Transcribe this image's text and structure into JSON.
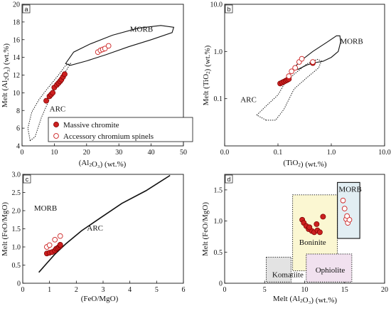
{
  "colors": {
    "filled": "#cc2020",
    "open": "#cc2020",
    "axis": "#111111"
  },
  "legend": {
    "items": [
      "Massive chromite",
      "Accessory chromium spinels"
    ]
  },
  "chart_data": [
    {
      "panel": "a",
      "type": "scatter",
      "xlabel": "(Al₂O₃) (wt.%)",
      "ylabel": "Melt (Al₂O₃) (wt.%)",
      "xlim": [
        0,
        50
      ],
      "ylim": [
        4,
        20
      ],
      "xticks": [
        "0",
        "10",
        "20",
        "30",
        "40",
        "50"
      ],
      "yticks": [
        "4",
        "6",
        "8",
        "10",
        "12",
        "14",
        "16",
        "18",
        "20"
      ],
      "annotations": [
        "MORB",
        "ARC"
      ],
      "series": [
        {
          "name": "Massive chromite",
          "marker": "filled",
          "x": [
            7.5,
            8.5,
            9.0,
            9.5,
            10.0,
            10.8,
            11.3,
            11.8,
            12.2,
            12.7,
            13.2
          ],
          "y": [
            9.1,
            9.6,
            9.8,
            10.0,
            10.6,
            10.9,
            11.1,
            11.3,
            11.5,
            11.8,
            12.1
          ]
        },
        {
          "name": "Accessory chromium spinels",
          "marker": "open",
          "x": [
            23.5,
            24.3,
            25.0,
            25.7,
            26.8
          ],
          "y": [
            14.6,
            14.8,
            14.9,
            15.0,
            15.3
          ]
        }
      ]
    },
    {
      "panel": "b",
      "type": "scatter",
      "scale": "log",
      "xlabel": "(TiO₂) (wt.%)",
      "ylabel": "Melt (TiO₂) (wt.%)",
      "xlim": [
        0.01,
        10
      ],
      "ylim": [
        0.01,
        10
      ],
      "xticks": [
        "0.0",
        "0.1",
        "1.0",
        "10.0"
      ],
      "yticks": [
        "0.1",
        "1.0",
        "10.0"
      ],
      "annotations": [
        "MORB",
        "ARC"
      ],
      "series": [
        {
          "name": "Massive chromite",
          "marker": "filled",
          "x": [
            0.11,
            0.12,
            0.13,
            0.14,
            0.15,
            0.16,
            0.45
          ],
          "y": [
            0.21,
            0.22,
            0.23,
            0.24,
            0.25,
            0.26,
            0.57
          ]
        },
        {
          "name": "Accessory chromium spinels",
          "marker": "open",
          "x": [
            0.16,
            0.18,
            0.21,
            0.25,
            0.28,
            0.45
          ],
          "y": [
            0.3,
            0.38,
            0.45,
            0.6,
            0.7,
            0.6
          ]
        }
      ]
    },
    {
      "panel": "c",
      "type": "scatter",
      "xlabel": "(FeO/MgO)",
      "ylabel": "Melt (FeO/MgO)",
      "xlim": [
        0,
        6
      ],
      "ylim": [
        0,
        3
      ],
      "xticks": [
        "0",
        "1",
        "2",
        "3",
        "4",
        "5",
        "6"
      ],
      "yticks": [
        "0",
        "0.5",
        "1.0",
        "1.5",
        "2.0",
        "2.5",
        "3.0"
      ],
      "annotations": [
        "MORB",
        "ARC"
      ],
      "series": [
        {
          "name": "Massive chromite",
          "marker": "filled",
          "x": [
            0.9,
            1.0,
            1.1,
            1.2,
            1.25,
            1.3,
            1.35,
            1.4,
            1.4
          ],
          "y": [
            0.82,
            0.84,
            0.86,
            0.9,
            0.95,
            0.97,
            1.0,
            1.03,
            1.06
          ]
        },
        {
          "name": "Accessory chromium spinels",
          "marker": "open",
          "x": [
            0.9,
            1.0,
            1.2,
            1.4
          ],
          "y": [
            1.0,
            1.05,
            1.2,
            1.3
          ]
        }
      ]
    },
    {
      "panel": "d",
      "type": "scatter",
      "xlabel": "Melt (Al₂O₃) (wt.%)",
      "ylabel": "Melt (FeO/MgO)",
      "xlim": [
        0,
        20
      ],
      "ylim": [
        0,
        1.75
      ],
      "xticks": [
        "0",
        "5",
        "10",
        "15",
        "20"
      ],
      "yticks": [
        "0",
        "0.5",
        "1.0",
        "1.5"
      ],
      "annotations": [
        "MORB",
        "Boninite",
        "Komatiite",
        "Ophiolite"
      ],
      "series": [
        {
          "name": "Massive chromite",
          "marker": "filled",
          "x": [
            9.7,
            9.9,
            10.2,
            10.5,
            10.9,
            11.2,
            11.6,
            11.9,
            12.3,
            10.6,
            11.5
          ],
          "y": [
            1.02,
            0.97,
            0.92,
            0.87,
            0.84,
            0.82,
            0.85,
            0.82,
            1.07,
            0.9,
            0.95
          ]
        },
        {
          "name": "Accessory chromium spinels",
          "marker": "open",
          "x": [
            14.8,
            15.0,
            15.2,
            15.4,
            15.6,
            15.3
          ],
          "y": [
            1.33,
            1.2,
            1.03,
            0.97,
            1.02,
            1.08
          ]
        }
      ]
    }
  ]
}
